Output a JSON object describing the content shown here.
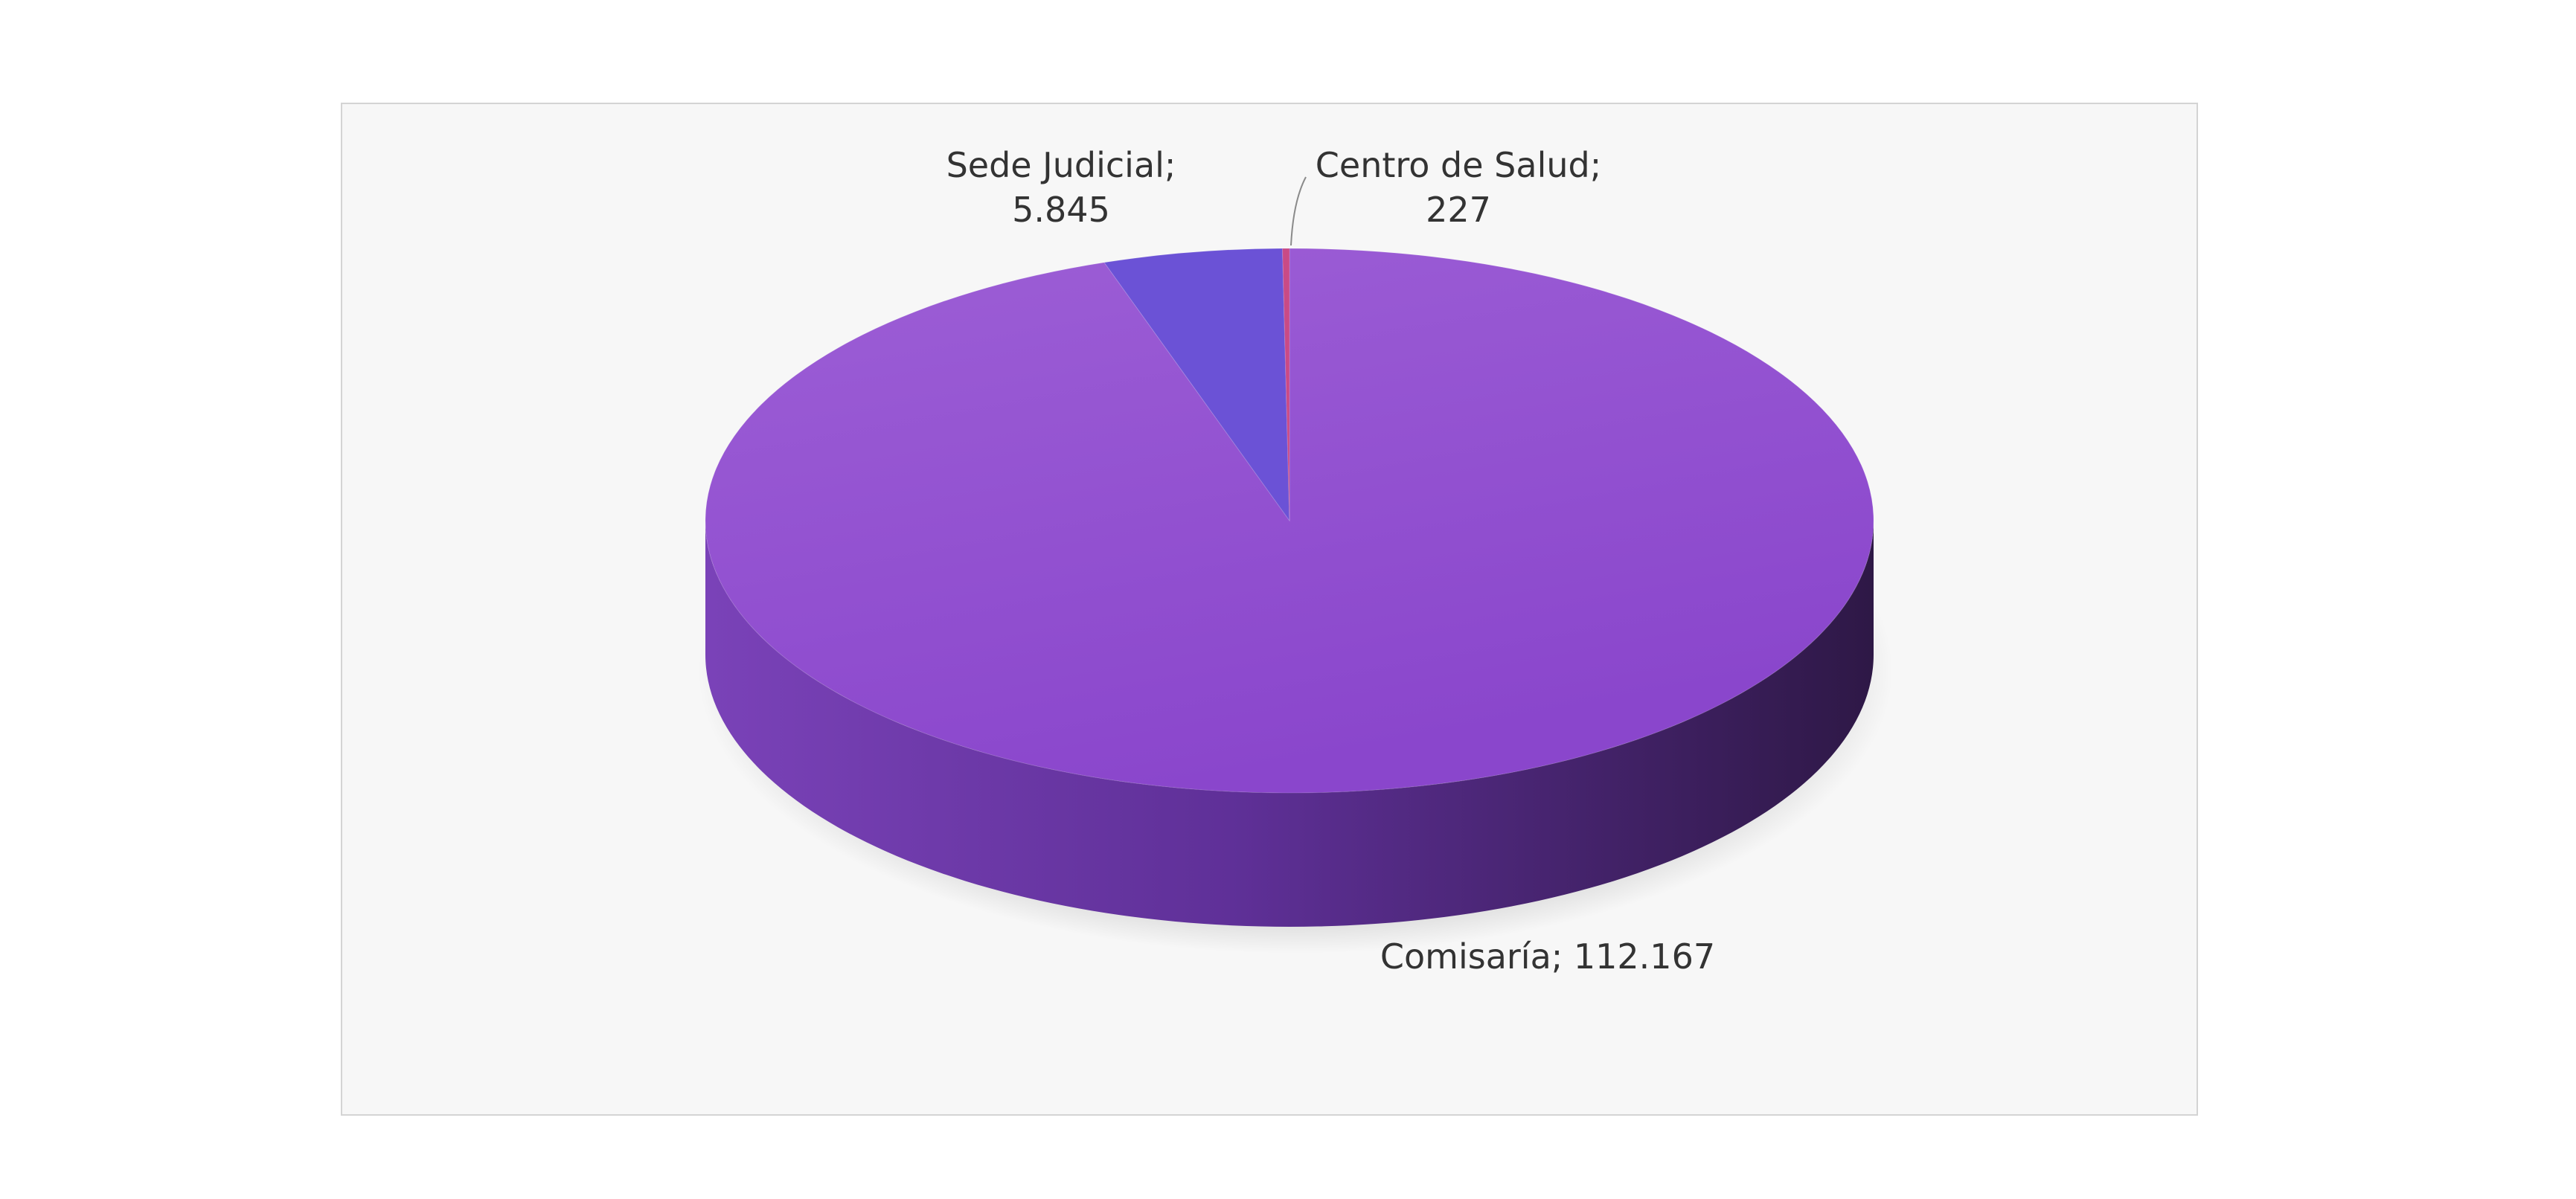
{
  "chart_data": {
    "type": "pie",
    "three_d": true,
    "title": "",
    "slices": [
      {
        "name": "Comisaria",
        "value": 112167,
        "display_name": "Comisaría;",
        "display_value": "112.167",
        "color": "#8d4ccc"
      },
      {
        "name": "Sede Judicial",
        "value": 5845,
        "display_name": "Sede Judicial;",
        "display_value": "5.845",
        "color": "#6b52d6"
      },
      {
        "name": "Centro de Salud",
        "value": 227,
        "display_name": "Centro de Salud;",
        "display_value": "227",
        "color": "#c94a86"
      }
    ],
    "legend": "none",
    "background": "#f7f7f7"
  }
}
